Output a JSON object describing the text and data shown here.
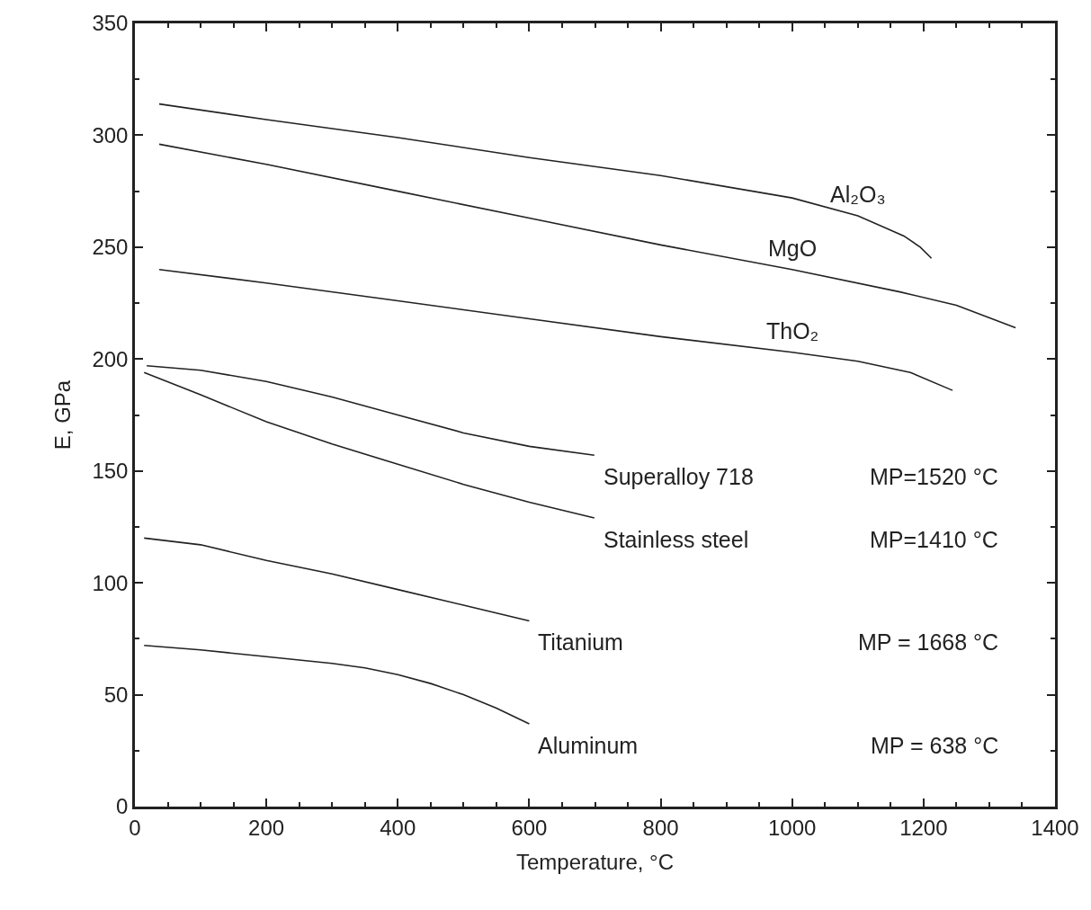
{
  "chart_data": {
    "type": "line",
    "xlabel": "Temperature, °C",
    "ylabel": "E, GPa",
    "xlim": [
      0,
      1400
    ],
    "xticks": [
      0,
      200,
      400,
      600,
      800,
      1000,
      1200,
      1400
    ],
    "ylim": [
      0,
      350
    ],
    "yticks": [
      0,
      50,
      100,
      150,
      200,
      250,
      300,
      350
    ],
    "grid": false,
    "legend": false,
    "marker": "none",
    "line_style": "solid",
    "series": [
      {
        "name": "Al₂O₃",
        "color": "#222222",
        "x": [
          37,
          200,
          400,
          600,
          800,
          1000,
          1100,
          1170,
          1195,
          1212
        ],
        "values": [
          314,
          307,
          299,
          290,
          282,
          272,
          264,
          255,
          250,
          245
        ]
      },
      {
        "name": "MgO",
        "color": "#222222",
        "x": [
          37,
          200,
          400,
          600,
          800,
          1000,
          1164,
          1250,
          1340
        ],
        "values": [
          296,
          287,
          275,
          263,
          251,
          240,
          230,
          224,
          214
        ]
      },
      {
        "name": "ThO₂",
        "color": "#222222",
        "x": [
          37,
          200,
          400,
          600,
          800,
          1000,
          1100,
          1180,
          1244
        ],
        "values": [
          240,
          234,
          226,
          218,
          210,
          203,
          199,
          194,
          186
        ]
      },
      {
        "name": "Superalloy 718",
        "color": "#222222",
        "x": [
          18,
          100,
          200,
          300,
          400,
          500,
          600,
          699
        ],
        "values": [
          197,
          195,
          190,
          183,
          175,
          167,
          161,
          157
        ]
      },
      {
        "name": "Stainless steel",
        "color": "#222222",
        "x": [
          14,
          100,
          200,
          300,
          400,
          500,
          600,
          699
        ],
        "values": [
          194,
          184,
          172,
          162,
          153,
          144,
          136,
          129
        ]
      },
      {
        "name": "Titanium",
        "color": "#222222",
        "x": [
          14,
          100,
          200,
          300,
          400,
          500,
          600
        ],
        "values": [
          120,
          117,
          110,
          104,
          97,
          90,
          83
        ]
      },
      {
        "name": "Aluminum",
        "color": "#222222",
        "x": [
          14,
          100,
          200,
          300,
          350,
          400,
          450,
          500,
          550,
          600
        ],
        "values": [
          72,
          70,
          67,
          64,
          62,
          59,
          55,
          50,
          44,
          37
        ]
      }
    ],
    "annotations": [
      "MP=1520 °C",
      "MP=1410 °C",
      "MP = 1668 °C",
      "MP = 638 °C"
    ]
  }
}
